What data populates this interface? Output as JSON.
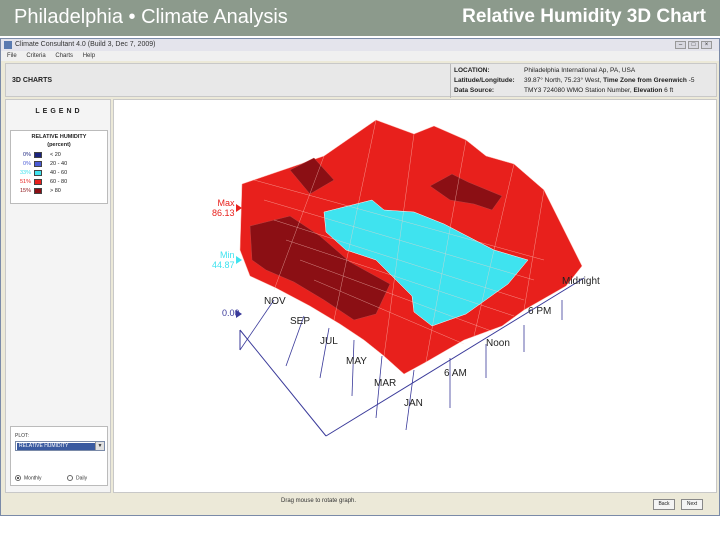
{
  "slide": {
    "title_left": "Philadelphia • Climate Analysis",
    "title_right": "Relative Humidity 3D Chart",
    "header_color": "#8c9a8c"
  },
  "app": {
    "title": "Climate Consultant 4.0 (Build 3, Dec 7, 2009)",
    "menu": [
      "File",
      "Criteria",
      "Charts",
      "Help"
    ],
    "section": "3D CHARTS",
    "info": {
      "location_key": "LOCATION:",
      "location_val": "Philadelphia International Ap, PA, USA",
      "latlong_key": "Latitude/Longitude:",
      "latlong_val": "39.87° North, 75.23° West, ",
      "tz_key": "Time Zone from Greenwich",
      "tz_val": " -5",
      "source_key": "Data Source:",
      "source_val": "TMY3      724080 WMO Station Number, ",
      "elev_key": "Elevation",
      "elev_val": " 6 ft"
    }
  },
  "legend": {
    "title": "LEGEND",
    "heading": "RELATIVE HUMIDITY",
    "subheading": "(percent)",
    "rows": [
      {
        "pct": "0%",
        "color": "#1a237e",
        "range": "< 20"
      },
      {
        "pct": "0%",
        "color": "#4a5bd6",
        "range": "20  -  40"
      },
      {
        "pct": "33%",
        "color": "#3fe3ef",
        "range": "40  -  60"
      },
      {
        "pct": "51%",
        "color": "#e8201c",
        "range": "60  -  80"
      },
      {
        "pct": "15%",
        "color": "#8b0f14",
        "range": "> 80"
      }
    ]
  },
  "plot": {
    "label": "PLOT:",
    "selected": "RELATIVE HUMIDITY",
    "radio_monthly": "Monthly",
    "radio_daily": "Daily"
  },
  "chart_data": {
    "type": "surface3d",
    "title": "",
    "z_markers": {
      "max_label": "Max",
      "max_value": "86.13",
      "min_label": "Min",
      "min_value": "44.87",
      "zero_value": "0.00"
    },
    "month_ticks": [
      "NOV",
      "SEP",
      "JUL",
      "MAY",
      "MAR",
      "JAN"
    ],
    "hour_ticks": [
      "6 AM",
      "Noon",
      "6 PM",
      "Midnight"
    ],
    "z_range": [
      0,
      86.13
    ],
    "colors": {
      "above_80": "#8b0f14",
      "60_80": "#e8201c",
      "40_60": "#3fe3ef",
      "axis": "#3a3a9a"
    }
  },
  "bottom": {
    "hint": "Drag mouse to rotate graph.",
    "back": "Back",
    "next": "Next"
  }
}
